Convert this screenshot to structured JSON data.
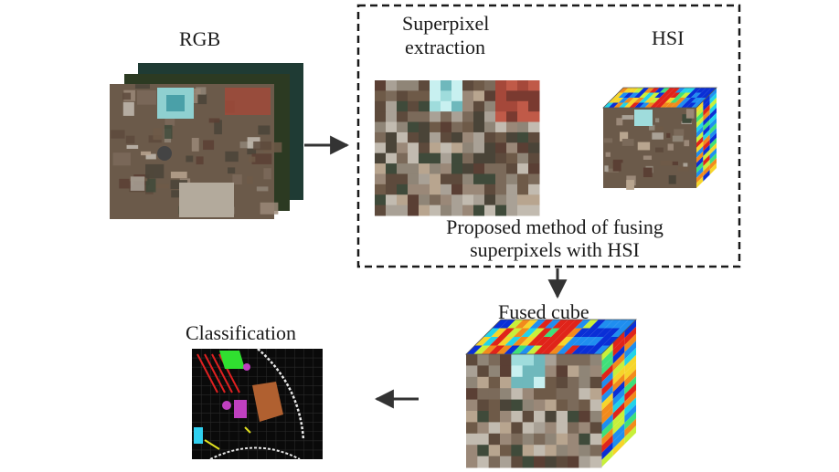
{
  "labels": {
    "rgb": "RGB",
    "superpixel_line1": "Superpixel",
    "superpixel_line2": "extraction",
    "hsi": "HSI",
    "method_line1": "Proposed method of fusing",
    "method_line2": "superpixels with HSI",
    "fused_cube": "Fused cube",
    "classification": "Classification"
  },
  "colors": {
    "arrow": "#333333",
    "dashed_border": "#1a1a1a",
    "hsi_palette": [
      "#0a2fd6",
      "#1f8ef0",
      "#22d3e8",
      "#3fe07a",
      "#c8f03a",
      "#f6d52b",
      "#f28a1c",
      "#e0241a"
    ],
    "class_palette": [
      "#e02020",
      "#30e030",
      "#c040c0",
      "#b06030",
      "#30d0f0",
      "#e0e020",
      "#ffffff"
    ]
  },
  "icons": [
    "arrow-right-icon",
    "arrow-down-icon",
    "arrow-left-icon"
  ]
}
